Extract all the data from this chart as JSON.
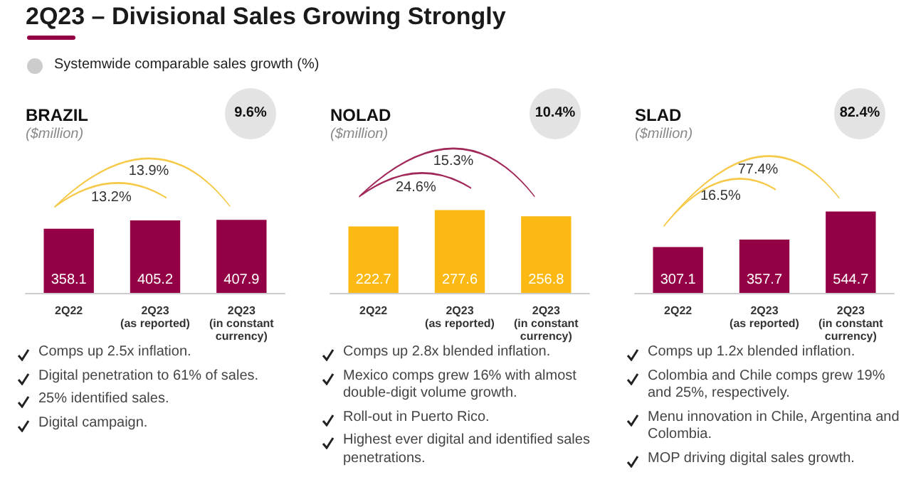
{
  "chart_data": [
    {
      "type": "bar",
      "title": "BRAZIL",
      "subtitle": "($million)",
      "categories": [
        "2Q22",
        "2Q23\n(as reported)",
        "2Q23\n(in constant\ncurrency)"
      ],
      "values": [
        358.1,
        405.2,
        407.9
      ],
      "color": "#930045",
      "data_labels": true,
      "tick_labels": "x",
      "annotations": [
        "2Q23 – Divisional Sales Growing Strongly",
        "Systemwide comparable sales growth (%)",
        "9.6%",
        "13.2%",
        "13.9%",
        "Comps up 2.5x inflation.",
        "Digital penetration to 61% of sales.",
        "25% identified sales.",
        "Digital campaign."
      ]
    },
    {
      "type": "bar",
      "title": "NOLAD",
      "subtitle": "($million)",
      "categories": [
        "2Q22",
        "2Q23\n(as reported)",
        "2Q23\n(in constant\ncurrency)"
      ],
      "values": [
        222.7,
        277.6,
        256.8
      ],
      "color": "#fdb913",
      "data_labels": true,
      "tick_labels": "x",
      "annotations": [
        "10.4%",
        "24.6%",
        "15.3%",
        "Comps up 2.8x blended inflation.",
        "Mexico comps grew 16% with almost double-digit volume growth.",
        "Roll-out in Puerto Rico.",
        "Highest ever digital and identified sales penetrations."
      ]
    },
    {
      "type": "bar",
      "title": "SLAD",
      "subtitle": "($million)",
      "categories": [
        "2Q22",
        "2Q23\n(as reported)",
        "2Q23\n(in constant\ncurrency)"
      ],
      "values": [
        307.1,
        357.7,
        544.7
      ],
      "color": "#930045",
      "data_labels": true,
      "tick_labels": "x",
      "annotations": [
        "82.4%",
        "16.5%",
        "77.4%",
        "Comps up 1.2x blended inflation.",
        "Colombia and Chile comps grew 19% and 25%, respectively.",
        "Menu innovation in Chile, Argentina and Colombia.",
        "MOP driving digital sales growth."
      ]
    }
  ]
}
